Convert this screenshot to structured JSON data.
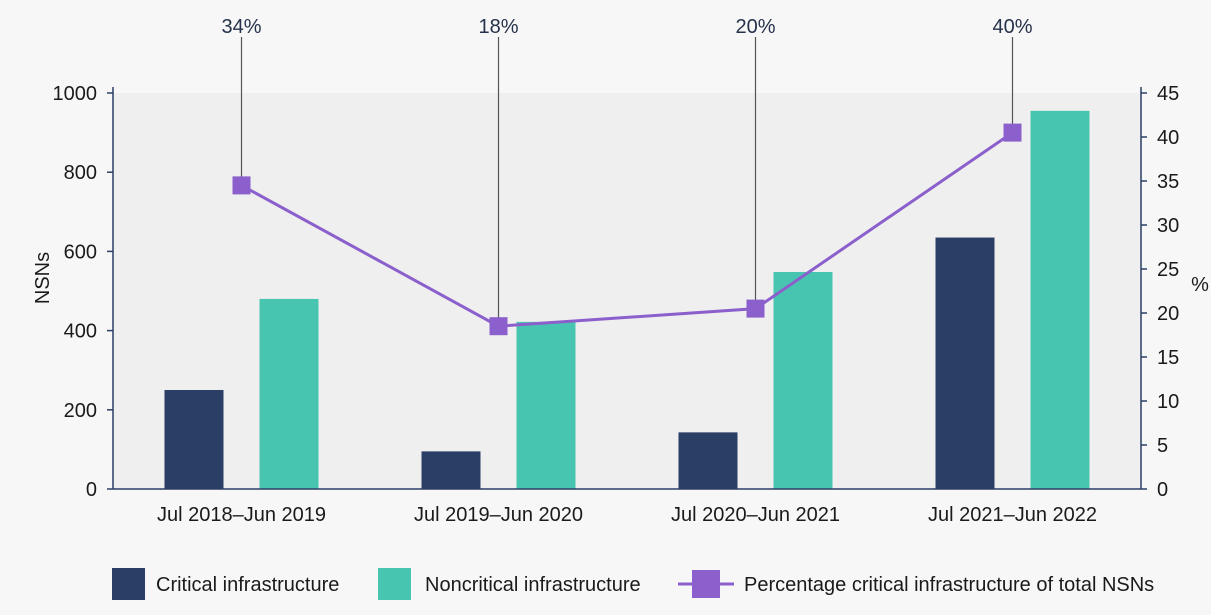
{
  "chart_data": {
    "type": "bar",
    "categories": [
      "Jul 2018–Jun 2019",
      "Jul 2019–Jun 2020",
      "Jul 2020–Jun 2021",
      "Jul 2021–Jun 2022"
    ],
    "series": [
      {
        "name": "Critical infrastructure",
        "type": "bar",
        "axis": "left",
        "color": "#2b3f66",
        "values": [
          250,
          95,
          143,
          635
        ]
      },
      {
        "name": "Noncritical infrastructure",
        "type": "bar",
        "axis": "left",
        "color": "#48c5b0",
        "values": [
          480,
          422,
          548,
          955
        ]
      },
      {
        "name": "Percentage critical infrastructure of total NSNs",
        "type": "line",
        "axis": "right",
        "color": "#8b5fcc",
        "values": [
          34.5,
          18.5,
          20.5,
          40.5
        ]
      }
    ],
    "annotations": [
      "34%",
      "18%",
      "20%",
      "40%"
    ],
    "ylabel": "NSNs",
    "y2label": "%",
    "ylim": [
      0,
      1000
    ],
    "y2lim": [
      0,
      45
    ],
    "yticks": [
      "0",
      "200",
      "400",
      "600",
      "800",
      "1000"
    ],
    "y2ticks": [
      "0",
      "5",
      "10",
      "15",
      "20",
      "25",
      "30",
      "35",
      "40",
      "45"
    ],
    "legend_position": "bottom",
    "plot_background": "#efefef",
    "page_background": "#f7f7f7",
    "axis_color": "#2b3f66"
  }
}
